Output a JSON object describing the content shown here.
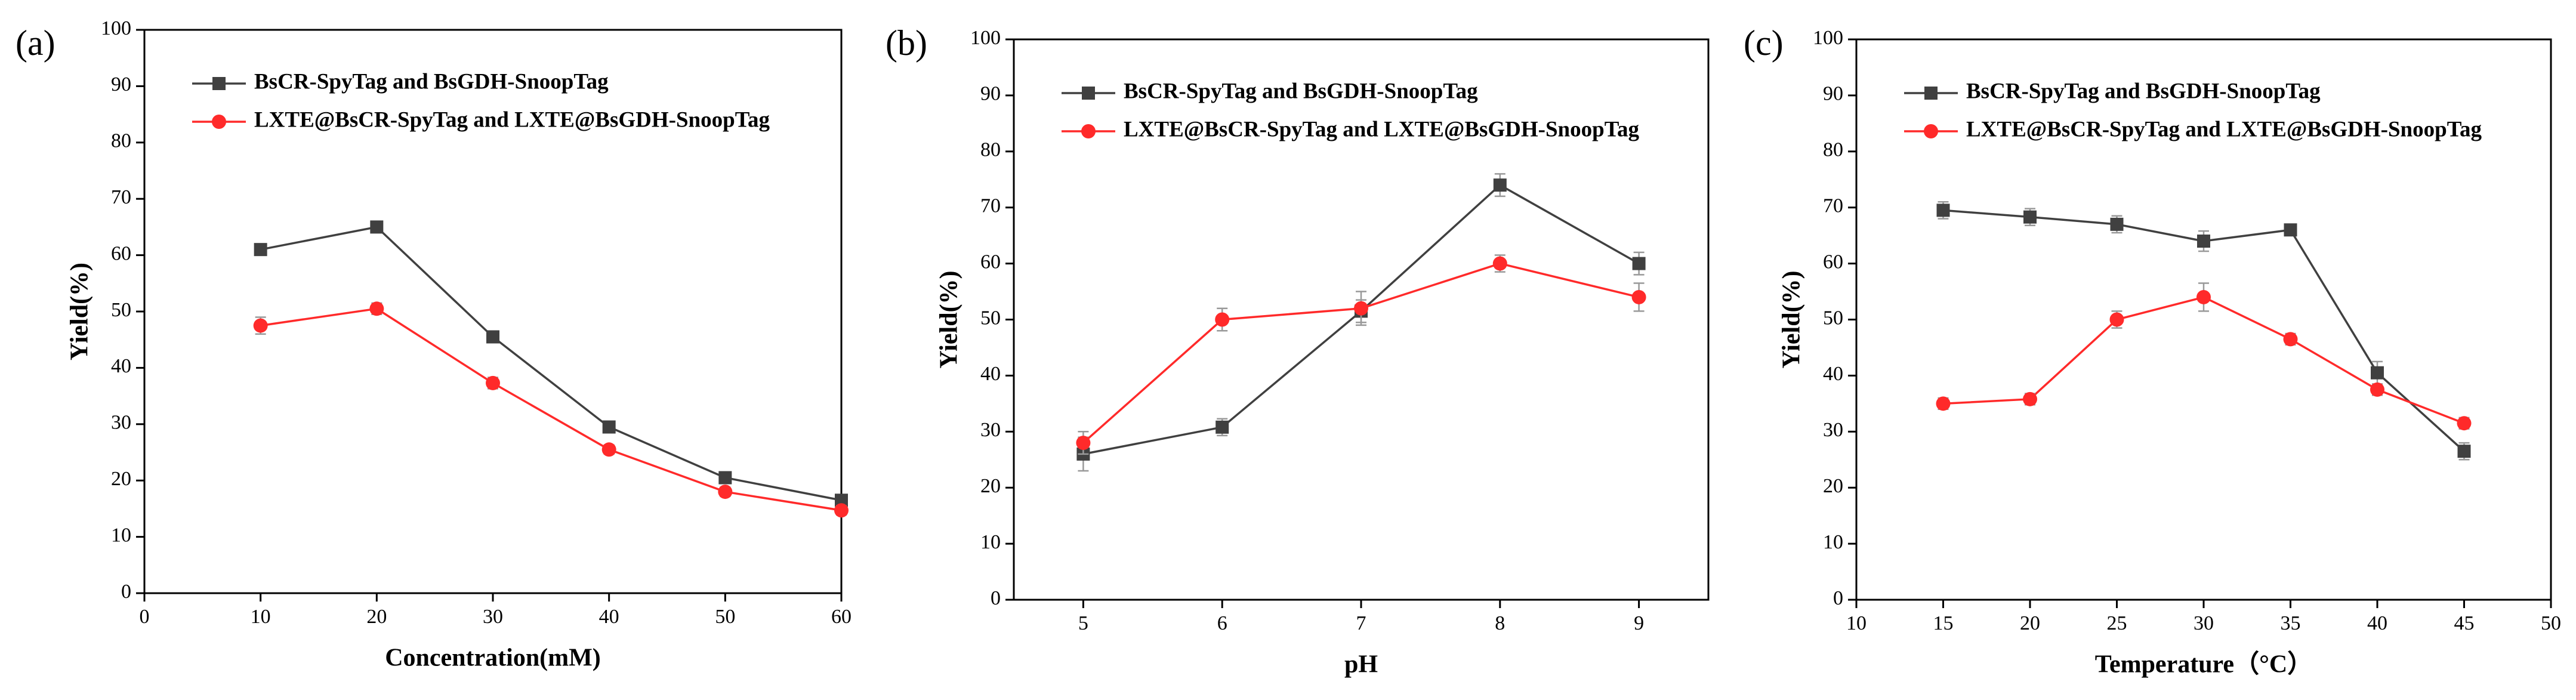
{
  "chart_data": [
    {
      "type": "line",
      "panel_label": "(a)",
      "xlabel": "Concentration(mM)",
      "ylabel": "Yield(%)",
      "x": [
        10,
        20,
        30,
        40,
        50,
        60
      ],
      "xlim": [
        0,
        60
      ],
      "xticks": [
        0,
        10,
        20,
        30,
        40,
        50,
        60
      ],
      "ylim": [
        0,
        100
      ],
      "yticks": [
        0,
        10,
        20,
        30,
        40,
        50,
        60,
        70,
        80,
        90,
        100
      ],
      "legend": "upper left",
      "series": [
        {
          "name": "BsCR-SpyTag and BsGDH-SnoopTag",
          "color": "#404040",
          "marker": "square",
          "values": [
            61,
            65,
            45.5,
            29.5,
            20.5,
            16.5
          ],
          "errors": [
            1,
            1,
            1,
            0.8,
            0.8,
            0.8
          ]
        },
        {
          "name": "LXTE@BsCR-SpyTag and LXTE@BsGDH-SnoopTag",
          "color": "#ff2a2a",
          "marker": "circle",
          "values": [
            47.5,
            50.5,
            37.3,
            25.5,
            18,
            14.7
          ],
          "errors": [
            1.5,
            1,
            1,
            0.8,
            0.8,
            0.8
          ]
        }
      ]
    },
    {
      "type": "line",
      "panel_label": "(b)",
      "xlabel": "pH",
      "ylabel": "Yield(%)",
      "x": [
        5,
        6,
        7,
        8,
        9
      ],
      "xlim": [
        4.5,
        9.5
      ],
      "xticks": [
        5,
        6,
        7,
        8,
        9
      ],
      "ylim": [
        0,
        100
      ],
      "yticks": [
        0,
        10,
        20,
        30,
        40,
        50,
        60,
        70,
        80,
        90,
        100
      ],
      "legend": "upper left",
      "series": [
        {
          "name": "BsCR-SpyTag and BsGDH-SnoopTag",
          "color": "#404040",
          "marker": "square",
          "values": [
            26,
            30.8,
            51.5,
            74,
            60
          ],
          "errors": [
            3,
            1.5,
            2,
            2,
            2
          ]
        },
        {
          "name": "LXTE@BsCR-SpyTag and LXTE@BsGDH-SnoopTag",
          "color": "#ff2a2a",
          "marker": "circle",
          "values": [
            28,
            50,
            52,
            60,
            54
          ],
          "errors": [
            2,
            2,
            3,
            1.5,
            2.5
          ]
        }
      ]
    },
    {
      "type": "line",
      "panel_label": "(c)",
      "xlabel": "Temperature（°C）",
      "ylabel": "Yield(%)",
      "x": [
        15,
        20,
        25,
        30,
        35,
        40,
        45
      ],
      "xlim": [
        10,
        50
      ],
      "xticks": [
        10,
        15,
        20,
        25,
        30,
        35,
        40,
        45,
        50
      ],
      "ylim": [
        0,
        100
      ],
      "yticks": [
        0,
        10,
        20,
        30,
        40,
        50,
        60,
        70,
        80,
        90,
        100
      ],
      "legend": "upper left",
      "series": [
        {
          "name": "BsCR-SpyTag and BsGDH-SnoopTag",
          "color": "#404040",
          "marker": "square",
          "values": [
            69.5,
            68.3,
            67,
            64,
            66,
            40.5,
            26.5
          ],
          "errors": [
            1.5,
            1.5,
            1.5,
            1.8,
            1,
            2,
            1.5
          ]
        },
        {
          "name": "LXTE@BsCR-SpyTag and LXTE@BsGDH-SnoopTag",
          "color": "#ff2a2a",
          "marker": "circle",
          "values": [
            35,
            35.8,
            50,
            54,
            46.5,
            37.5,
            31.5
          ],
          "errors": [
            1,
            1,
            1.5,
            2.5,
            1,
            1,
            1
          ]
        }
      ]
    }
  ]
}
